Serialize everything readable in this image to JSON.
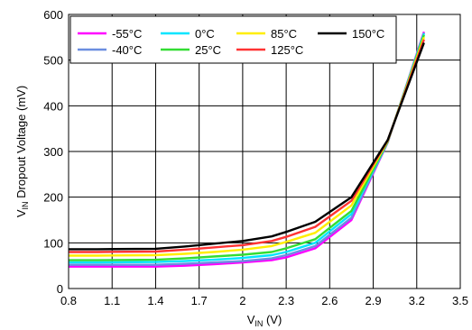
{
  "chart_data": {
    "type": "line",
    "title": "",
    "xlabel": {
      "main": "V",
      "sub": "IN",
      "rest": " (V)"
    },
    "ylabel": {
      "main": "V",
      "sub": "IN",
      "rest": " Dropout Voltage (mV)"
    },
    "xlim": [
      0.8,
      3.5
    ],
    "ylim": [
      0,
      600
    ],
    "x_ticks": [
      0.8,
      1.1,
      1.4,
      1.7,
      2,
      2.3,
      2.6,
      2.9,
      3.2,
      3.5
    ],
    "x_tick_labels": [
      "0.8",
      "1.1",
      "1.4",
      "1.7",
      "2",
      "2.3",
      "2.6",
      "2.9",
      "3.2",
      "3.5"
    ],
    "y_ticks": [
      0,
      100,
      200,
      300,
      400,
      500,
      600
    ],
    "y_tick_labels": [
      "0",
      "100",
      "200",
      "300",
      "400",
      "500",
      "600"
    ],
    "grid": true,
    "legend_position": "top",
    "x": [
      0.8,
      1.0,
      1.4,
      1.6,
      1.8,
      2.0,
      2.2,
      2.3,
      2.5,
      2.75,
      3.0,
      3.25
    ],
    "series": [
      {
        "name": "-55°C",
        "color": "#ff00ff",
        "values": [
          48,
          48,
          48,
          50,
          53,
          57,
          62,
          68,
          88,
          150,
          320,
          562
        ]
      },
      {
        "name": "-40°C",
        "color": "#6b8ee0",
        "values": [
          52,
          52,
          52,
          54,
          57,
          60,
          66,
          73,
          93,
          155,
          320,
          560
        ]
      },
      {
        "name": "0°C",
        "color": "#00e5ff",
        "values": [
          57,
          57,
          58,
          60,
          63,
          67,
          73,
          80,
          100,
          163,
          322,
          558
        ]
      },
      {
        "name": "25°C",
        "color": "#33dd33",
        "values": [
          62,
          62,
          63,
          66,
          70,
          74,
          80,
          88,
          108,
          170,
          322,
          555
        ]
      },
      {
        "name": "85°C",
        "color": "#ffee00",
        "values": [
          72,
          72,
          73,
          76,
          80,
          85,
          93,
          102,
          122,
          182,
          323,
          550
        ]
      },
      {
        "name": "125°C",
        "color": "#ff3333",
        "values": [
          80,
          80,
          81,
          85,
          90,
          95,
          104,
          113,
          135,
          192,
          324,
          545
        ]
      },
      {
        "name": "150°C",
        "color": "#000000",
        "values": [
          86,
          86,
          87,
          92,
          98,
          104,
          114,
          124,
          146,
          200,
          325,
          538
        ]
      }
    ]
  }
}
